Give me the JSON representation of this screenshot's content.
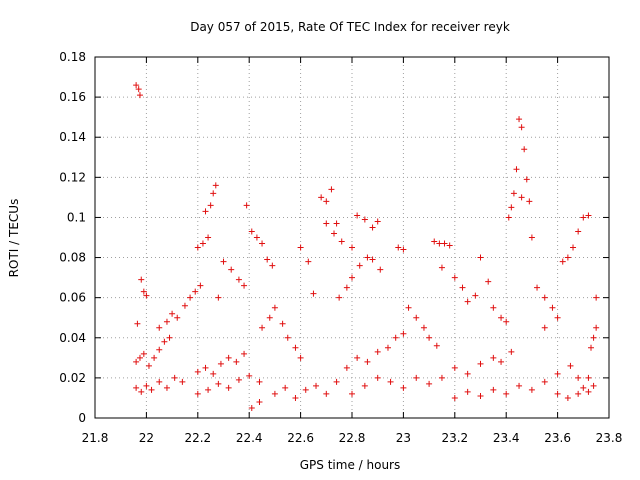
{
  "chart_data": {
    "type": "scatter",
    "title": "Day 057 of 2015, Rate Of TEC Index for receiver reyk",
    "xlabel": "GPS time / hours",
    "ylabel": "ROTI / TECUs",
    "xlim": [
      21.8,
      23.8
    ],
    "ylim": [
      0,
      0.18
    ],
    "x_ticks": [
      21.8,
      22,
      22.2,
      22.4,
      22.6,
      22.8,
      23,
      23.2,
      23.4,
      23.6,
      23.8
    ],
    "x_tick_labels": [
      "21.8",
      "22",
      "22.2",
      "22.4",
      "22.6",
      "22.8",
      "23",
      "23.2",
      "23.4",
      "23.6",
      "23.8"
    ],
    "y_ticks": [
      0,
      0.02,
      0.04,
      0.06,
      0.08,
      0.1,
      0.12,
      0.14,
      0.16,
      0.18
    ],
    "y_tick_labels": [
      "0",
      "0.02",
      "0.04",
      "0.06",
      "0.08",
      "0.1",
      "0.12",
      "0.14",
      "0.16",
      "0.18"
    ],
    "grid": true,
    "marker": "plus",
    "color": "#e01010",
    "series": [
      {
        "name": "reyk",
        "points": [
          [
            21.96,
            0.166
          ],
          [
            21.97,
            0.164
          ],
          [
            21.975,
            0.161
          ],
          [
            21.965,
            0.047
          ],
          [
            21.98,
            0.069
          ],
          [
            21.99,
            0.063
          ],
          [
            22.0,
            0.061
          ],
          [
            21.96,
            0.028
          ],
          [
            21.975,
            0.03
          ],
          [
            21.99,
            0.032
          ],
          [
            22.01,
            0.026
          ],
          [
            22.03,
            0.03
          ],
          [
            22.05,
            0.034
          ],
          [
            22.07,
            0.038
          ],
          [
            22.09,
            0.04
          ],
          [
            21.96,
            0.015
          ],
          [
            21.98,
            0.013
          ],
          [
            22.0,
            0.016
          ],
          [
            22.02,
            0.014
          ],
          [
            22.05,
            0.018
          ],
          [
            22.08,
            0.015
          ],
          [
            22.11,
            0.02
          ],
          [
            22.14,
            0.018
          ],
          [
            22.05,
            0.045
          ],
          [
            22.08,
            0.048
          ],
          [
            22.1,
            0.052
          ],
          [
            22.12,
            0.05
          ],
          [
            22.15,
            0.056
          ],
          [
            22.17,
            0.06
          ],
          [
            22.19,
            0.063
          ],
          [
            22.21,
            0.066
          ],
          [
            22.2,
            0.085
          ],
          [
            22.22,
            0.087
          ],
          [
            22.23,
            0.103
          ],
          [
            22.25,
            0.106
          ],
          [
            22.26,
            0.112
          ],
          [
            22.27,
            0.116
          ],
          [
            22.24,
            0.09
          ],
          [
            22.2,
            0.023
          ],
          [
            22.23,
            0.025
          ],
          [
            22.26,
            0.022
          ],
          [
            22.29,
            0.027
          ],
          [
            22.32,
            0.03
          ],
          [
            22.35,
            0.028
          ],
          [
            22.38,
            0.032
          ],
          [
            22.2,
            0.012
          ],
          [
            22.24,
            0.014
          ],
          [
            22.28,
            0.017
          ],
          [
            22.32,
            0.015
          ],
          [
            22.36,
            0.019
          ],
          [
            22.4,
            0.021
          ],
          [
            22.44,
            0.018
          ],
          [
            22.28,
            0.06
          ],
          [
            22.3,
            0.078
          ],
          [
            22.33,
            0.074
          ],
          [
            22.36,
            0.069
          ],
          [
            22.38,
            0.066
          ],
          [
            22.39,
            0.106
          ],
          [
            22.41,
            0.093
          ],
          [
            22.43,
            0.09
          ],
          [
            22.45,
            0.087
          ],
          [
            22.47,
            0.079
          ],
          [
            22.49,
            0.076
          ],
          [
            22.41,
            0.005
          ],
          [
            22.44,
            0.008
          ],
          [
            22.45,
            0.045
          ],
          [
            22.48,
            0.05
          ],
          [
            22.5,
            0.055
          ],
          [
            22.53,
            0.047
          ],
          [
            22.55,
            0.04
          ],
          [
            22.58,
            0.035
          ],
          [
            22.6,
            0.03
          ],
          [
            22.5,
            0.012
          ],
          [
            22.54,
            0.015
          ],
          [
            22.58,
            0.01
          ],
          [
            22.62,
            0.014
          ],
          [
            22.66,
            0.016
          ],
          [
            22.7,
            0.012
          ],
          [
            22.74,
            0.018
          ],
          [
            22.6,
            0.085
          ],
          [
            22.63,
            0.078
          ],
          [
            22.65,
            0.062
          ],
          [
            22.68,
            0.11
          ],
          [
            22.7,
            0.108
          ],
          [
            22.72,
            0.114
          ],
          [
            22.74,
            0.097
          ],
          [
            22.7,
            0.097
          ],
          [
            22.73,
            0.092
          ],
          [
            22.76,
            0.088
          ],
          [
            22.8,
            0.085
          ],
          [
            22.82,
            0.101
          ],
          [
            22.85,
            0.099
          ],
          [
            22.88,
            0.095
          ],
          [
            22.9,
            0.098
          ],
          [
            22.75,
            0.06
          ],
          [
            22.78,
            0.065
          ],
          [
            22.8,
            0.07
          ],
          [
            22.83,
            0.076
          ],
          [
            22.86,
            0.08
          ],
          [
            22.88,
            0.079
          ],
          [
            22.91,
            0.074
          ],
          [
            22.78,
            0.025
          ],
          [
            22.82,
            0.03
          ],
          [
            22.86,
            0.028
          ],
          [
            22.9,
            0.033
          ],
          [
            22.94,
            0.035
          ],
          [
            22.97,
            0.04
          ],
          [
            23.0,
            0.042
          ],
          [
            22.8,
            0.012
          ],
          [
            22.85,
            0.016
          ],
          [
            22.9,
            0.02
          ],
          [
            22.95,
            0.018
          ],
          [
            23.0,
            0.015
          ],
          [
            23.05,
            0.02
          ],
          [
            23.1,
            0.017
          ],
          [
            22.98,
            0.085
          ],
          [
            23.0,
            0.084
          ],
          [
            23.02,
            0.055
          ],
          [
            23.05,
            0.05
          ],
          [
            23.08,
            0.045
          ],
          [
            23.1,
            0.04
          ],
          [
            23.13,
            0.036
          ],
          [
            23.12,
            0.088
          ],
          [
            23.14,
            0.087
          ],
          [
            23.16,
            0.087
          ],
          [
            23.18,
            0.086
          ],
          [
            23.15,
            0.075
          ],
          [
            23.2,
            0.07
          ],
          [
            23.23,
            0.065
          ],
          [
            23.15,
            0.02
          ],
          [
            23.2,
            0.025
          ],
          [
            23.25,
            0.022
          ],
          [
            23.3,
            0.027
          ],
          [
            23.35,
            0.03
          ],
          [
            23.38,
            0.028
          ],
          [
            23.42,
            0.033
          ],
          [
            23.2,
            0.01
          ],
          [
            23.25,
            0.013
          ],
          [
            23.3,
            0.011
          ],
          [
            23.35,
            0.014
          ],
          [
            23.4,
            0.012
          ],
          [
            23.45,
            0.016
          ],
          [
            23.5,
            0.014
          ],
          [
            23.25,
            0.058
          ],
          [
            23.28,
            0.061
          ],
          [
            23.3,
            0.08
          ],
          [
            23.33,
            0.068
          ],
          [
            23.35,
            0.055
          ],
          [
            23.38,
            0.05
          ],
          [
            23.4,
            0.048
          ],
          [
            23.41,
            0.1
          ],
          [
            23.42,
            0.105
          ],
          [
            23.43,
            0.112
          ],
          [
            23.44,
            0.124
          ],
          [
            23.45,
            0.149
          ],
          [
            23.46,
            0.145
          ],
          [
            23.47,
            0.134
          ],
          [
            23.48,
            0.119
          ],
          [
            23.46,
            0.11
          ],
          [
            23.49,
            0.108
          ],
          [
            23.5,
            0.09
          ],
          [
            23.52,
            0.065
          ],
          [
            23.55,
            0.06
          ],
          [
            23.58,
            0.055
          ],
          [
            23.55,
            0.045
          ],
          [
            23.6,
            0.05
          ],
          [
            23.62,
            0.078
          ],
          [
            23.64,
            0.08
          ],
          [
            23.66,
            0.085
          ],
          [
            23.68,
            0.093
          ],
          [
            23.7,
            0.1
          ],
          [
            23.72,
            0.101
          ],
          [
            23.55,
            0.018
          ],
          [
            23.6,
            0.022
          ],
          [
            23.65,
            0.026
          ],
          [
            23.68,
            0.02
          ],
          [
            23.7,
            0.015
          ],
          [
            23.72,
            0.013
          ],
          [
            23.74,
            0.016
          ],
          [
            23.6,
            0.012
          ],
          [
            23.64,
            0.01
          ],
          [
            23.68,
            0.012
          ],
          [
            23.72,
            0.02
          ],
          [
            23.73,
            0.035
          ],
          [
            23.74,
            0.04
          ],
          [
            23.75,
            0.045
          ],
          [
            23.75,
            0.06
          ]
        ]
      }
    ]
  }
}
